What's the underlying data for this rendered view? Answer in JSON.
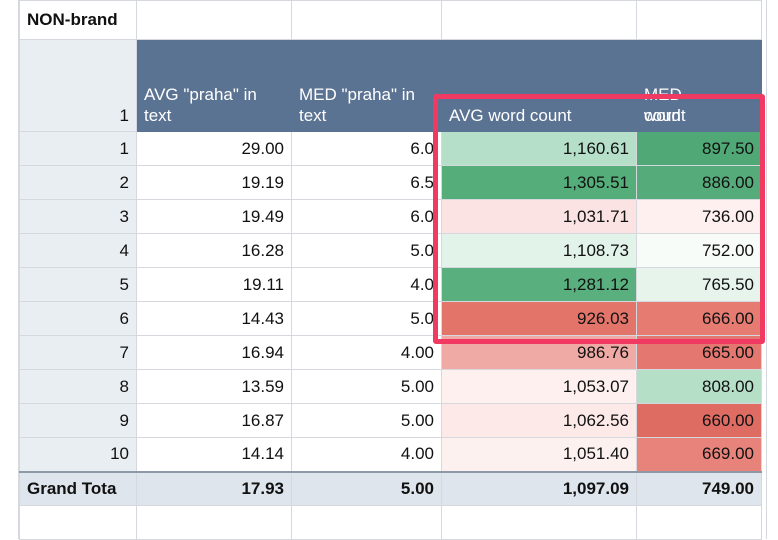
{
  "section_label": "NON-brand",
  "header": {
    "row_label": "1",
    "col1": "AVG \"praha\" in text",
    "col2": "MED \"praha\" in text",
    "col3": "AVG word count",
    "col4_line1": "MED word",
    "col4_line2": "count"
  },
  "rows": [
    {
      "label": "1",
      "avg_praha": "29.00",
      "med_praha": "6.0",
      "avg_wc": "1,160.61",
      "med_wc": "897.50"
    },
    {
      "label": "2",
      "avg_praha": "19.19",
      "med_praha": "6.5",
      "avg_wc": "1,305.51",
      "med_wc": "886.00"
    },
    {
      "label": "3",
      "avg_praha": "19.49",
      "med_praha": "6.0",
      "avg_wc": "1,031.71",
      "med_wc": "736.00"
    },
    {
      "label": "4",
      "avg_praha": "16.28",
      "med_praha": "5.0",
      "avg_wc": "1,108.73",
      "med_wc": "752.00"
    },
    {
      "label": "5",
      "avg_praha": "19.11",
      "med_praha": "4.0",
      "avg_wc": "1,281.12",
      "med_wc": "765.50"
    },
    {
      "label": "6",
      "avg_praha": "14.43",
      "med_praha": "5.0",
      "avg_wc": "926.03",
      "med_wc": "666.00"
    },
    {
      "label": "7",
      "avg_praha": "16.94",
      "med_praha": "4.00",
      "avg_wc": "986.76",
      "med_wc": "665.00"
    },
    {
      "label": "8",
      "avg_praha": "13.59",
      "med_praha": "5.00",
      "avg_wc": "1,053.07",
      "med_wc": "808.00"
    },
    {
      "label": "9",
      "avg_praha": "16.87",
      "med_praha": "5.00",
      "avg_wc": "1,062.56",
      "med_wc": "660.00"
    },
    {
      "label": "10",
      "avg_praha": "14.14",
      "med_praha": "4.00",
      "avg_wc": "1,051.40",
      "med_wc": "669.00"
    }
  ],
  "total": {
    "label": "Grand Tota",
    "avg_praha": "17.93",
    "med_praha": "5.00",
    "avg_wc": "1,097.09",
    "med_wc": "749.00"
  },
  "colors": {
    "avg_wc": [
      "#b5dfc8",
      "#55ad7a",
      "#fbe3e3",
      "#e2f3e9",
      "#5aaf7e",
      "#e2746a",
      "#f0aaa5",
      "#fdf0ef",
      "#fde9e8",
      "#fdf1f0"
    ],
    "med_wc": [
      "#4fa876",
      "#55ab7a",
      "#fdf0ef",
      "#f8fcf9",
      "#e6f4ec",
      "#e67b72",
      "#e47870",
      "#b6dfc8",
      "#df6c63",
      "#e8837b"
    ],
    "highlight": "#f03a62",
    "header_bg": "#5b7392"
  }
}
